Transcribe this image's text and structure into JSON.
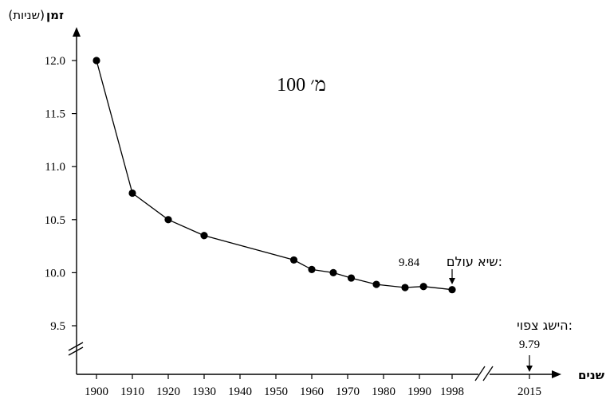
{
  "chart_data": {
    "type": "line",
    "title": "100 מ׳",
    "ylabel_bold": "זמן",
    "ylabel_unit": "(שניות)",
    "xlabel": "שנים",
    "x_ticks": [
      "1900",
      "1910",
      "1920",
      "1930",
      "1940",
      "1950",
      "1960",
      "1970",
      "1980",
      "1990",
      "1998",
      "2015"
    ],
    "y_ticks": [
      "9.5",
      "10.0",
      "10.5",
      "11.0",
      "11.5",
      "12.0"
    ],
    "ylim": [
      9.5,
      12.0
    ],
    "series": [
      {
        "x": [
          1900,
          1910,
          1920,
          1930,
          1955,
          1960,
          1966,
          1971,
          1978,
          1986,
          1991,
          1998
        ],
        "y": [
          12.0,
          10.75,
          10.5,
          10.35,
          10.12,
          10.03,
          10.0,
          9.95,
          9.89,
          9.86,
          9.87,
          9.84
        ]
      }
    ],
    "annotations": {
      "record_label": "שיא עולם:",
      "record_value": "9.84",
      "forecast_label": "הישג צפוי:",
      "forecast_value": "9.79"
    },
    "axis_breaks": [
      "y-axis",
      "x-axis"
    ]
  }
}
